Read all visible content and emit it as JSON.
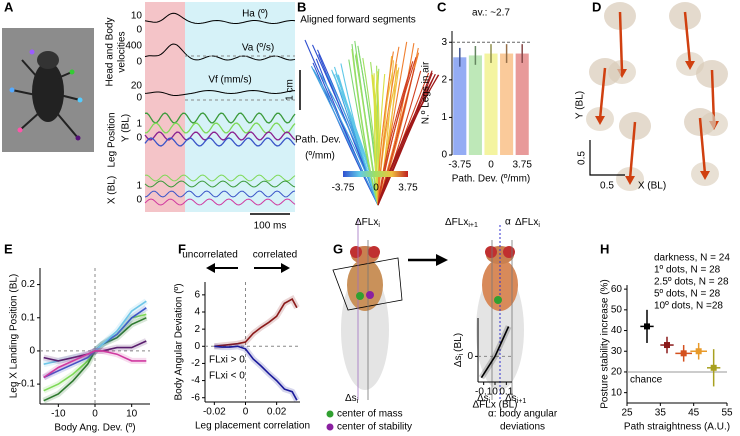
{
  "panel_labels": [
    "A",
    "B",
    "C",
    "D",
    "E",
    "F",
    "G",
    "H"
  ],
  "panel_a": {
    "head_body_label": "Head and Body",
    "velocities_label": "velocities",
    "ha": "Ha (º)",
    "va": "Va (º/s)",
    "vf": "Vf (mm/s)",
    "leg_position_label": "Leg Position",
    "y_label": "Y (BL)",
    "x_label": "X (BL)",
    "scale_labels": [
      "10",
      "0",
      "400",
      "0",
      "20",
      "0",
      "1",
      "0",
      "1",
      "0"
    ],
    "time_scale": "100 ms"
  },
  "panel_b": {
    "title": "Aligned forward segments",
    "scale": "1 cm",
    "colorbar_label": "Path. Dev.",
    "colorbar_unit": "(º/mm)",
    "colorbar_ticks": [
      "-3.75",
      "0",
      "3.75"
    ]
  },
  "panel_d": {
    "y_label": "Y (BL)",
    "x_label": "X (BL)",
    "y_scale": "0.5",
    "x_scale": "0.5"
  },
  "panel_g": {
    "flx_i": {
      "main": "ΔFLx",
      "sub": "i"
    },
    "flx_i1": {
      "main": "ΔFLx",
      "sub": "i+1"
    },
    "alpha": "α",
    "flx_i_ghost": {
      "main": "ΔFLx",
      "sub": "i"
    },
    "s_i_left": {
      "main": "Δs",
      "sub": "i"
    },
    "s_i_right": {
      "main": "Δs",
      "sub": "i"
    },
    "s_i1": {
      "main": "Δs",
      "sub": "i+1"
    },
    "legend_mass": "center of mass",
    "legend_stability": "center of stability",
    "legend_alpha": "α: body angular",
    "legend_alpha2": "deviations"
  },
  "chart_data": [
    {
      "type": "bar",
      "title": "av.: ~2.7",
      "ylabel": "N.º Legs in air",
      "xlabel": "Path. Dev. (º/mm)",
      "categories": [
        "-3.75",
        null,
        "0",
        null,
        "3.75"
      ],
      "values": [
        2.6,
        2.65,
        2.7,
        2.7,
        2.7
      ],
      "errors": [
        0.25,
        0.25,
        0.25,
        0.25,
        0.25
      ],
      "colors": [
        "#7090f0",
        "#a8e0a0",
        "#f0f080",
        "#f8b878",
        "#e07878"
      ],
      "ylim": [
        0,
        3.3
      ],
      "yticks": [
        0,
        1,
        2,
        3
      ],
      "ref_line": 3
    },
    {
      "type": "line",
      "ylabel": "Leg X Landing Position (BL)",
      "xlabel": "Body Ang. Dev. (º)",
      "xlim": [
        -15,
        15
      ],
      "xticks": [
        -10,
        0,
        10
      ],
      "ylim": [
        -0.16,
        0.25
      ],
      "yticks": [
        -0.1,
        0,
        0.1,
        0.2
      ],
      "zero_lines": true,
      "x": [
        -14,
        -10,
        -6,
        -2,
        0,
        2,
        6,
        10,
        14
      ],
      "series": [
        {
          "color": "#7ed957",
          "values": [
            -0.12,
            -0.1,
            -0.07,
            -0.03,
            0,
            0.02,
            0.05,
            0.1,
            0.11
          ]
        },
        {
          "color": "#2f7a2f",
          "values": [
            -0.15,
            -0.13,
            -0.09,
            -0.04,
            0,
            0.02,
            0.04,
            0.08,
            0.1
          ]
        },
        {
          "color": "#3a55c8",
          "values": [
            -0.08,
            -0.06,
            -0.04,
            -0.02,
            0,
            0.02,
            0.05,
            0.1,
            0.13
          ]
        },
        {
          "color": "#6fc6e8",
          "values": [
            -0.04,
            -0.03,
            -0.02,
            -0.01,
            0,
            0.02,
            0.06,
            0.12,
            0.15
          ]
        },
        {
          "color": "#5a1e6e",
          "values": [
            -0.02,
            -0.03,
            -0.02,
            -0.01,
            0,
            0,
            0.01,
            0.01,
            0.03
          ]
        },
        {
          "color": "#d03aa0",
          "values": [
            -0.08,
            -0.05,
            -0.03,
            -0.01,
            0,
            0,
            -0.01,
            -0.03,
            -0.03
          ]
        }
      ]
    },
    {
      "type": "line",
      "ylabel": "Body Angular Deviation (º)",
      "xlabel": "Leg placement correlation",
      "xlim": [
        -0.026,
        0.035
      ],
      "xticks": [
        -0.02,
        0,
        0.02
      ],
      "ylim": [
        -6.5,
        7.5
      ],
      "yticks": [
        -6,
        -4,
        -2,
        0,
        2,
        4,
        6
      ],
      "zero_lines": true,
      "annotations": [
        "uncorrelated",
        "correlated"
      ],
      "x": [
        -0.02,
        -0.015,
        -0.01,
        -0.005,
        0,
        0.005,
        0.01,
        0.015,
        0.02,
        0.025,
        0.03,
        0.033
      ],
      "series": [
        {
          "name": "FLxi > 0",
          "color": "#8b1a1a",
          "values": [
            0,
            0.1,
            0.2,
            0.3,
            0.5,
            1.5,
            2.2,
            2.8,
            3.5,
            5.0,
            5.5,
            4.5
          ]
        },
        {
          "name": "FLxi < 0",
          "color": "#1a1a9b",
          "values": [
            0,
            -0.1,
            -0.1,
            0,
            -0.3,
            -1.5,
            -2.3,
            -3.2,
            -4,
            -5.0,
            -5.3,
            -6.3
          ]
        }
      ]
    },
    {
      "type": "line",
      "ylabel": {
        "main": "Δs",
        "sub": "i",
        "unit": "(BL)"
      },
      "xlabel": "ΔFLx (BL)",
      "xlim": [
        -0.15,
        0.15
      ],
      "xticks": [
        -0.1,
        0,
        0.1
      ],
      "ylim": [
        -0.12,
        0.18
      ],
      "yticks": [
        0
      ],
      "zero_lines": true,
      "x": [
        -0.12,
        -0.06,
        0,
        0.06,
        0.12
      ],
      "series": [
        {
          "color": "#000000",
          "values": [
            -0.1,
            -0.05,
            0,
            0.07,
            0.14
          ]
        }
      ]
    },
    {
      "type": "scatter",
      "ylabel": "Posture stability increase (%)",
      "xlabel": "Path straightness (A.U.)",
      "xlim": [
        25,
        55
      ],
      "xticks": [
        25,
        35,
        45,
        55
      ],
      "ylim": [
        5,
        62
      ],
      "yticks": [
        10,
        20,
        30,
        40,
        50,
        60
      ],
      "ref_line": 20,
      "ref_label": "chance",
      "series": [
        {
          "name": "darkness, N = 24",
          "color": "#000000",
          "x": [
            31
          ],
          "values": [
            42
          ],
          "xerr": [
            2
          ],
          "yerr": [
            8
          ]
        },
        {
          "name": "1º dots, N = 28",
          "color": "#8b1a1a",
          "x": [
            37
          ],
          "values": [
            33
          ],
          "xerr": [
            2
          ],
          "yerr": [
            4
          ]
        },
        {
          "name": "2.5º dots, N = 28",
          "color": "#d4501e",
          "x": [
            42
          ],
          "values": [
            29
          ],
          "xerr": [
            2.5
          ],
          "yerr": [
            4
          ]
        },
        {
          "name": "5º dots, N = 28",
          "color": "#e89a2a",
          "x": [
            46.5
          ],
          "values": [
            30
          ],
          "xerr": [
            2.5
          ],
          "yerr": [
            4
          ]
        },
        {
          "name": "10º dots, N =28",
          "color": "#a8a020",
          "x": [
            51
          ],
          "values": [
            22
          ],
          "xerr": [
            2
          ],
          "yerr": [
            9
          ]
        }
      ]
    }
  ]
}
